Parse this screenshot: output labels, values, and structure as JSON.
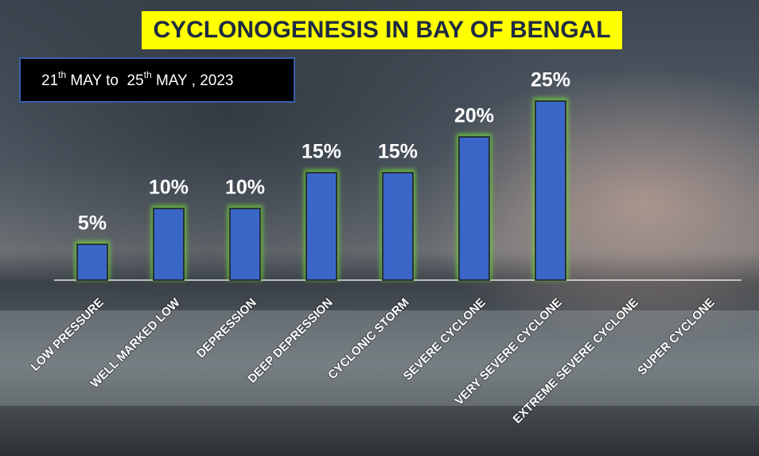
{
  "chart_data": {
    "type": "bar",
    "title": "CYCLONOGENESIS IN BAY OF BENGAL",
    "subtitle": [
      "21",
      "th",
      " MAY to  25",
      "th",
      " MAY , 2023"
    ],
    "categories": [
      "LOW PRESSURE",
      "WELL MARKED LOW",
      "DEPRESSION",
      "DEEP DEPRESSION",
      "CYCLONIC STORM",
      "SEVERE CYCLONE",
      "VERY SEVERE CYCLONE",
      "EXTREME SEVERE CYCLONE",
      "SUPER CYCLONE"
    ],
    "values": [
      5,
      10,
      10,
      15,
      15,
      20,
      25,
      null,
      null
    ],
    "value_labels": [
      "5%",
      "10%",
      "10%",
      "15%",
      "15%",
      "20%",
      "25%",
      null,
      null
    ],
    "color": "#3a66c8"
  }
}
